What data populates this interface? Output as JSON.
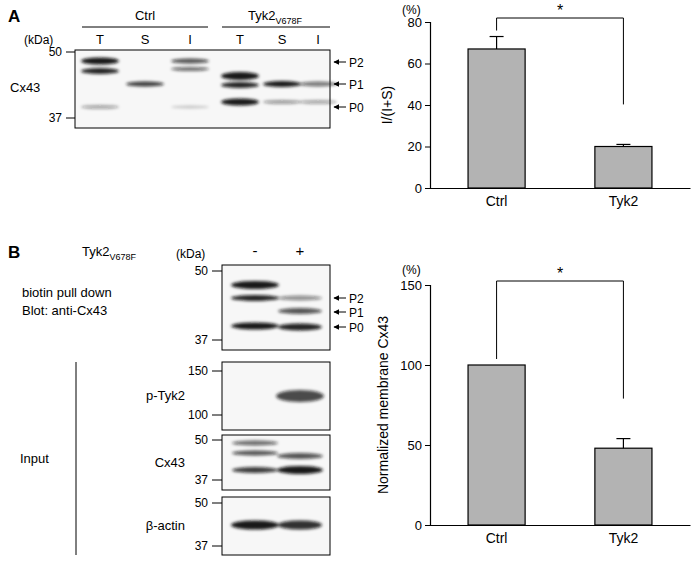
{
  "chart_data": [
    {
      "type": "bar",
      "categories": [
        "Ctrl",
        "Tyk2"
      ],
      "values": [
        67,
        20
      ],
      "errors": [
        6,
        1
      ],
      "ylim": [
        0,
        80
      ],
      "yticks": [
        0,
        20,
        40,
        60,
        80
      ],
      "ylabel": "I/(I+S)",
      "ylabel_unit": "(%)",
      "color": "#b3b3b3",
      "annotations": [
        "*"
      ]
    },
    {
      "type": "bar",
      "categories": [
        "Ctrl",
        "Tyk2"
      ],
      "values": [
        100,
        48
      ],
      "errors": [
        null,
        6
      ],
      "ylim": [
        0,
        150
      ],
      "yticks": [
        0,
        50,
        100,
        150
      ],
      "ylabel": "Normalized membrane Cx43",
      "ylabel_unit": "(%)",
      "color": "#b3b3b3",
      "annotations": [
        "*"
      ]
    }
  ],
  "panels": {
    "A": {
      "label": "A",
      "groups": [
        {
          "name": "Ctrl"
        },
        {
          "name": "Tyk2",
          "subscript": "V678F"
        }
      ],
      "lanes": [
        "T",
        "S",
        "I",
        "T",
        "S",
        "I"
      ],
      "blot": {
        "protein": "Cx43",
        "kda_unit": "(kDa)",
        "kda": [
          50,
          37
        ],
        "bands": [
          "P2",
          "P1",
          "P0"
        ]
      }
    },
    "B": {
      "label": "B",
      "treatment": "Tyk2",
      "subscript": "V678F",
      "conditions": [
        "-",
        "+"
      ],
      "kda_unit": "(kDa)",
      "pulldown": {
        "lines": [
          "biotin pull down",
          "Blot: anti-Cx43"
        ],
        "kda": [
          50,
          37
        ],
        "bands": [
          "P2",
          "P1",
          "P0"
        ]
      },
      "input": {
        "label": "Input",
        "blots": [
          {
            "protein": "p-Tyk2",
            "kda": [
              150,
              100
            ]
          },
          {
            "protein": "Cx43",
            "kda": [
              50,
              37
            ]
          },
          {
            "protein": "β-actin",
            "kda": [
              50,
              37
            ]
          }
        ]
      }
    }
  }
}
